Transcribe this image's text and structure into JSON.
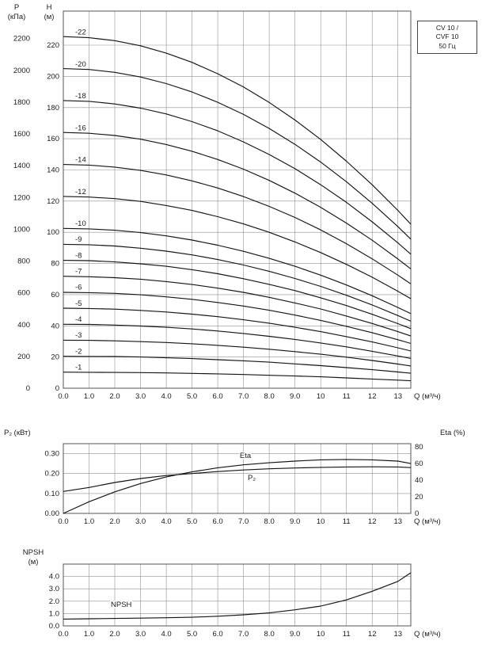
{
  "annotation_box": {
    "lines": [
      "CV 10 /",
      "CVF 10",
      "50 Гц"
    ]
  },
  "axes_titles": {
    "pressure_symbol": "P",
    "pressure_unit": "(кПа)",
    "head_symbol": "H",
    "head_unit": "(м)",
    "power_title": "P₂ (кВт)",
    "eta_title": "Eta (%)",
    "npsh_symbol": "NPSH",
    "npsh_unit": "(м)",
    "q_title": "Q (м³/ч)"
  },
  "colors": {
    "curve": "#141414",
    "grid": "#909090",
    "border": "#555555",
    "text": "#1a1a1a"
  },
  "chart_data": [
    {
      "type": "line",
      "name": "head-curves",
      "title": "CV 10 / CVF 10 50 Гц",
      "xlabel": "Q (м³/ч)",
      "ylabel_left_outer": "P (кПа)",
      "ylabel_left_inner": "H (м)",
      "xlim": [
        0,
        13.5
      ],
      "ylim_m": [
        0,
        242
      ],
      "grid": true,
      "x_ticks": [
        0,
        1,
        2,
        3,
        4,
        5,
        6,
        7,
        8,
        9,
        10,
        11,
        12,
        13
      ],
      "x_tick_labels": [
        "0.0",
        "1.0",
        "2.0",
        "3.0",
        "4.0",
        "5.0",
        "6.0",
        "7.0",
        "8.0",
        "9.0",
        "10",
        "11",
        "12",
        "13"
      ],
      "y_ticks_head_m": [
        0,
        20,
        40,
        60,
        80,
        100,
        120,
        140,
        160,
        180,
        200,
        220
      ],
      "y_ticks_pressure_kpa": [
        0,
        200,
        400,
        600,
        800,
        1000,
        1200,
        1400,
        1600,
        1800,
        2000,
        2200
      ],
      "x": [
        0,
        1,
        2,
        3,
        4,
        5,
        6,
        7,
        8,
        9,
        10,
        11,
        12,
        13,
        13.5
      ],
      "series": [
        {
          "name": "-22",
          "stages": 22,
          "values": [
            225.5,
            224.8,
            222.9,
            219.6,
            214.9,
            209.0,
            201.7,
            193.2,
            183.3,
            172.0,
            159.5,
            145.6,
            130.5,
            114.0,
            105.2
          ]
        },
        {
          "name": "-20",
          "stages": 20,
          "values": [
            205.0,
            204.4,
            202.6,
            199.6,
            195.4,
            190.0,
            183.4,
            175.6,
            166.6,
            156.4,
            145.0,
            132.4,
            118.6,
            103.6,
            95.6
          ]
        },
        {
          "name": "-18",
          "stages": 18,
          "values": [
            184.5,
            184.0,
            182.3,
            179.6,
            175.9,
            171.0,
            165.1,
            158.0,
            149.9,
            140.8,
            130.5,
            119.2,
            106.7,
            93.2,
            86.0
          ]
        },
        {
          "name": "-16",
          "stages": 16,
          "values": [
            164.0,
            163.5,
            162.1,
            159.7,
            156.3,
            152.0,
            146.7,
            140.5,
            133.3,
            125.1,
            116.0,
            105.9,
            94.9,
            82.9,
            76.5
          ]
        },
        {
          "name": "-14",
          "stages": 14,
          "values": [
            143.5,
            143.1,
            141.8,
            139.7,
            136.8,
            133.0,
            128.4,
            122.9,
            116.6,
            109.5,
            101.5,
            92.7,
            83.0,
            72.5,
            66.9
          ]
        },
        {
          "name": "-12",
          "stages": 12,
          "values": [
            123.0,
            122.6,
            121.6,
            119.8,
            117.2,
            114.0,
            110.0,
            105.4,
            100.0,
            93.8,
            87.0,
            79.4,
            71.2,
            62.2,
            57.4
          ]
        },
        {
          "name": "-10",
          "stages": 10,
          "values": [
            102.5,
            102.2,
            101.3,
            99.8,
            97.7,
            95.0,
            91.7,
            87.8,
            83.3,
            78.2,
            72.5,
            66.2,
            59.3,
            51.8,
            47.8
          ]
        },
        {
          "name": "-9",
          "stages": 9,
          "values": [
            92.3,
            92.0,
            91.2,
            89.8,
            87.9,
            85.5,
            82.5,
            79.0,
            75.0,
            70.4,
            65.3,
            59.6,
            53.4,
            46.6,
            43.0
          ]
        },
        {
          "name": "-8",
          "stages": 8,
          "values": [
            82.0,
            81.8,
            81.0,
            79.8,
            78.2,
            76.0,
            73.4,
            70.2,
            66.6,
            62.6,
            58.0,
            53.0,
            47.4,
            41.4,
            38.2
          ]
        },
        {
          "name": "-7",
          "stages": 7,
          "values": [
            71.8,
            71.5,
            70.9,
            69.9,
            68.4,
            66.5,
            64.2,
            61.5,
            58.3,
            54.7,
            50.8,
            46.3,
            41.5,
            36.3,
            33.5
          ]
        },
        {
          "name": "-6",
          "stages": 6,
          "values": [
            61.5,
            61.3,
            60.8,
            59.9,
            58.6,
            57.0,
            55.0,
            52.7,
            50.0,
            46.9,
            43.5,
            39.7,
            35.6,
            31.1,
            28.7
          ]
        },
        {
          "name": "-5",
          "stages": 5,
          "values": [
            51.3,
            51.1,
            50.7,
            49.9,
            48.9,
            47.5,
            45.9,
            43.9,
            41.7,
            39.1,
            36.3,
            33.1,
            29.7,
            25.9,
            23.9
          ]
        },
        {
          "name": "-4",
          "stages": 4,
          "values": [
            41.0,
            40.9,
            40.5,
            39.9,
            39.1,
            38.0,
            36.7,
            35.1,
            33.3,
            31.3,
            29.0,
            26.5,
            23.7,
            20.7,
            19.1
          ]
        },
        {
          "name": "-3",
          "stages": 3,
          "values": [
            30.8,
            30.7,
            30.4,
            29.9,
            29.3,
            28.5,
            27.5,
            26.3,
            25.0,
            23.5,
            21.8,
            19.9,
            17.8,
            15.5,
            14.3
          ]
        },
        {
          "name": "-2",
          "stages": 2,
          "values": [
            20.5,
            20.4,
            20.3,
            20.0,
            19.5,
            19.0,
            18.3,
            17.6,
            16.7,
            15.6,
            14.5,
            13.2,
            11.9,
            10.4,
            9.6
          ]
        },
        {
          "name": "-1",
          "stages": 1,
          "values": [
            10.3,
            10.2,
            10.1,
            10.0,
            9.8,
            9.5,
            9.2,
            8.8,
            8.3,
            7.8,
            7.3,
            6.6,
            5.9,
            5.2,
            4.8
          ]
        }
      ]
    },
    {
      "type": "line",
      "name": "power-efficiency",
      "xlabel": "Q (м³/ч)",
      "ylabel_left": "P₂ (кВт)",
      "ylabel_right": "Eta (%)",
      "xlim": [
        0,
        13.5
      ],
      "ylim_left": [
        0,
        0.35
      ],
      "ylim_right": [
        0,
        84
      ],
      "grid": true,
      "x_ticks": [
        0,
        1,
        2,
        3,
        4,
        5,
        6,
        7,
        8,
        9,
        10,
        11,
        12,
        13
      ],
      "x_tick_labels": [
        "0.0",
        "1.0",
        "2.0",
        "3.0",
        "4.0",
        "5.0",
        "6.0",
        "7.0",
        "8.0",
        "9.0",
        "10",
        "11",
        "12",
        "13"
      ],
      "y_ticks_left": [
        "0.00",
        "0.10",
        "0.20",
        "0.30"
      ],
      "y_ticks_right": [
        0,
        20,
        40,
        60,
        80
      ],
      "x": [
        0,
        1,
        2,
        3,
        4,
        5,
        6,
        7,
        8,
        9,
        10,
        11,
        12,
        13,
        13.5
      ],
      "series": [
        {
          "name": "P₂",
          "axis": "left",
          "values": [
            0.11,
            0.13,
            0.155,
            0.175,
            0.19,
            0.2,
            0.21,
            0.218,
            0.224,
            0.228,
            0.231,
            0.233,
            0.234,
            0.233,
            0.23
          ]
        },
        {
          "name": "Eta",
          "axis": "right",
          "values": [
            0,
            14,
            26,
            36,
            44,
            50,
            55,
            58.5,
            61,
            63,
            64.5,
            65,
            64.5,
            63,
            60
          ]
        }
      ]
    },
    {
      "type": "line",
      "name": "npsh",
      "xlabel": "Q (м³/ч)",
      "ylabel": "NPSH (м)",
      "xlim": [
        0,
        13.5
      ],
      "ylim": [
        0,
        5
      ],
      "grid": true,
      "x_ticks": [
        0,
        1,
        2,
        3,
        4,
        5,
        6,
        7,
        8,
        9,
        10,
        11,
        12,
        13
      ],
      "x_tick_labels": [
        "0.0",
        "1.0",
        "2.0",
        "3.0",
        "4.0",
        "5.0",
        "6.0",
        "7.0",
        "8.0",
        "9.0",
        "10",
        "11",
        "12",
        "13"
      ],
      "y_ticks": [
        "0.0",
        "1.0",
        "2.0",
        "3.0",
        "4.0"
      ],
      "x": [
        0,
        1,
        2,
        3,
        4,
        5,
        6,
        7,
        8,
        9,
        10,
        11,
        12,
        13,
        13.5
      ],
      "series": [
        {
          "name": "NPSH",
          "values": [
            0.55,
            0.58,
            0.6,
            0.63,
            0.66,
            0.7,
            0.78,
            0.9,
            1.05,
            1.3,
            1.6,
            2.1,
            2.8,
            3.6,
            4.3
          ]
        }
      ]
    }
  ]
}
